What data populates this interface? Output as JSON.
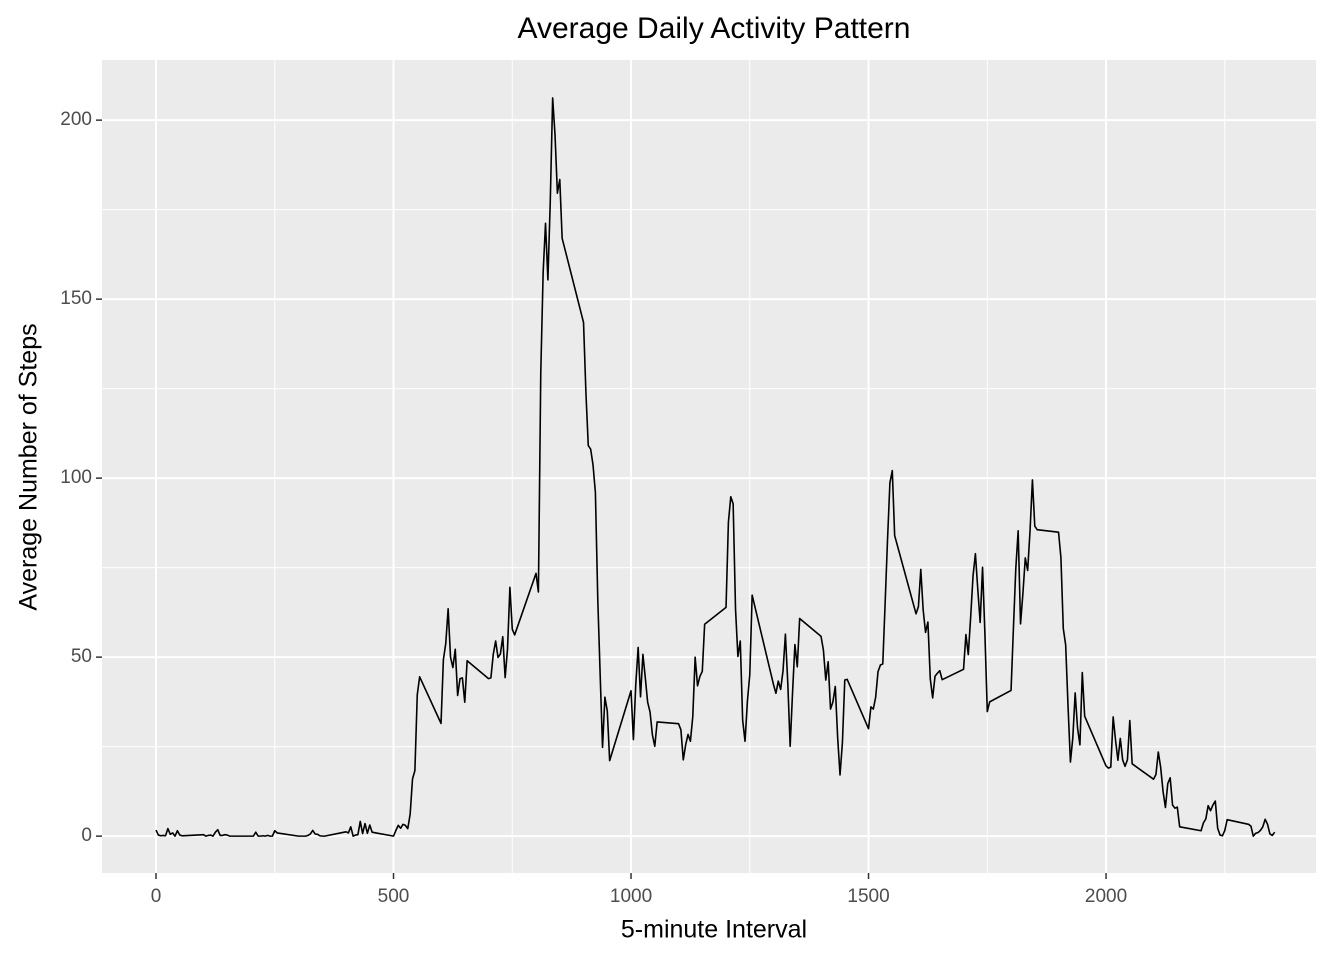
{
  "chart_data": {
    "type": "line",
    "title": "Average Daily Activity Pattern",
    "x_label": "5-minute Interval",
    "y_label": "Average Number of Steps",
    "xlim": [
      -113.7,
      2442
    ],
    "ylim": [
      -10.3,
      216.8
    ],
    "xticks": [
      0,
      500,
      1000,
      1500,
      2000
    ],
    "yticks": [
      0,
      50,
      100,
      150,
      200
    ],
    "x_minor_ticks": [
      250,
      750,
      1250,
      1750,
      2250
    ],
    "y_minor_ticks": [
      25,
      75,
      125,
      175
    ],
    "grid": true,
    "color": "#000000",
    "x": [
      0,
      5,
      10,
      15,
      20,
      25,
      30,
      35,
      40,
      45,
      50,
      55,
      100,
      105,
      110,
      115,
      120,
      125,
      130,
      135,
      140,
      145,
      150,
      155,
      200,
      205,
      210,
      215,
      220,
      225,
      230,
      235,
      240,
      245,
      250,
      255,
      300,
      305,
      310,
      315,
      320,
      325,
      330,
      335,
      340,
      345,
      350,
      355,
      400,
      405,
      410,
      415,
      420,
      425,
      430,
      435,
      440,
      445,
      450,
      455,
      500,
      505,
      510,
      515,
      520,
      525,
      530,
      535,
      540,
      545,
      550,
      555,
      600,
      605,
      610,
      615,
      620,
      625,
      630,
      635,
      640,
      645,
      650,
      655,
      700,
      705,
      710,
      715,
      720,
      725,
      730,
      735,
      740,
      745,
      750,
      755,
      800,
      805,
      810,
      815,
      820,
      825,
      830,
      835,
      840,
      845,
      850,
      855,
      900,
      905,
      910,
      915,
      920,
      925,
      930,
      935,
      940,
      945,
      950,
      955,
      1000,
      1005,
      1010,
      1015,
      1020,
      1025,
      1030,
      1035,
      1040,
      1045,
      1050,
      1055,
      1100,
      1105,
      1110,
      1115,
      1120,
      1125,
      1130,
      1135,
      1140,
      1145,
      1150,
      1155,
      1200,
      1205,
      1210,
      1215,
      1220,
      1225,
      1230,
      1235,
      1240,
      1245,
      1250,
      1255,
      1300,
      1305,
      1310,
      1315,
      1320,
      1325,
      1330,
      1335,
      1340,
      1345,
      1350,
      1355,
      1400,
      1405,
      1410,
      1415,
      1420,
      1425,
      1430,
      1435,
      1440,
      1445,
      1450,
      1455,
      1500,
      1505,
      1510,
      1515,
      1520,
      1525,
      1530,
      1535,
      1540,
      1545,
      1550,
      1555,
      1600,
      1605,
      1610,
      1615,
      1620,
      1625,
      1630,
      1635,
      1640,
      1645,
      1650,
      1655,
      1700,
      1705,
      1710,
      1715,
      1720,
      1725,
      1730,
      1735,
      1740,
      1745,
      1750,
      1755,
      1800,
      1805,
      1810,
      1815,
      1820,
      1825,
      1830,
      1835,
      1840,
      1845,
      1850,
      1855,
      1900,
      1905,
      1910,
      1915,
      1920,
      1925,
      1930,
      1935,
      1940,
      1945,
      1950,
      1955,
      2000,
      2005,
      2010,
      2015,
      2020,
      2025,
      2030,
      2035,
      2040,
      2045,
      2050,
      2055,
      2100,
      2105,
      2110,
      2115,
      2120,
      2125,
      2130,
      2135,
      2140,
      2145,
      2150,
      2155,
      2200,
      2205,
      2210,
      2215,
      2220,
      2225,
      2230,
      2235,
      2240,
      2245,
      2250,
      2255,
      2300,
      2305,
      2310,
      2315,
      2320,
      2325,
      2330,
      2335,
      2340,
      2345,
      2350,
      2355
    ],
    "values": [
      1.7,
      0.3,
      0.1,
      0.2,
      0.1,
      2.1,
      0.5,
      0.9,
      0,
      1.5,
      0.3,
      0.1,
      0.4,
      0,
      0.2,
      0.3,
      0,
      1.1,
      1.8,
      0.2,
      0.2,
      0.4,
      0.3,
      0,
      0,
      0,
      1.1,
      0,
      0,
      0.1,
      0,
      0.2,
      0,
      0,
      1.5,
      0.9,
      0,
      0,
      0,
      0,
      0.2,
      0.6,
      1.6,
      0.6,
      0.5,
      0.1,
      0,
      0,
      1.2,
      0.9,
      2.6,
      0,
      0.3,
      0.4,
      4.1,
      0.7,
      3.5,
      0.8,
      3.1,
      1.1,
      0,
      1.6,
      3,
      2.2,
      3.3,
      3,
      2.1,
      6.1,
      16,
      18.3,
      39.5,
      44.5,
      31.5,
      49.3,
      53.8,
      63.5,
      50,
      47.1,
      52.2,
      39.3,
      44,
      44.2,
      37.4,
      49,
      44,
      44.2,
      50.8,
      54.5,
      49.9,
      50.9,
      55.7,
      44.3,
      52.3,
      69.5,
      57.8,
      56.2,
      73.4,
      68.2,
      129.4,
      157.5,
      171.2,
      155.4,
      177.3,
      206.2,
      195.9,
      179.6,
      183.4,
      167,
      143.5,
      124,
      109.1,
      108.1,
      103.7,
      95.97,
      66.2,
      45.2,
      24.8,
      38.8,
      34.98,
      21.1,
      40.6,
      26.98,
      42.4,
      52.7,
      38.9,
      50.8,
      44.3,
      37.4,
      34.7,
      28.3,
      25.1,
      31.9,
      31.4,
      29.7,
      21.3,
      25.5,
      28.4,
      26.5,
      33.4,
      49.98,
      42,
      44.6,
      46,
      59.2,
      63.9,
      87.7,
      94.8,
      92.8,
      63.4,
      50.2,
      54.5,
      32.4,
      26.5,
      37.7,
      45.1,
      67.3,
      42.3,
      39.9,
      43.3,
      40.98,
      46.2,
      56.4,
      42.8,
      25.1,
      40,
      53.5,
      47.3,
      60.8,
      55.8,
      51.96,
      43.6,
      48.7,
      35.5,
      37.5,
      41.8,
      27.5,
      17.1,
      26.1,
      43.6,
      43.8,
      30,
      36.1,
      35.5,
      38.8,
      45.96,
      47.8,
      48.1,
      65.3,
      82.9,
      98.7,
      102.1,
      83.96,
      62.1,
      64.1,
      74.5,
      63.2,
      56.9,
      59.8,
      43.9,
      38.6,
      44.7,
      45.5,
      46.2,
      43.7,
      46.6,
      56.3,
      50.7,
      61.2,
      72.7,
      78.9,
      68.9,
      59.7,
      75.1,
      56.5,
      34.8,
      37.5,
      40.7,
      58,
      74.7,
      85.3,
      59.3,
      67.8,
      77.7,
      74.2,
      85.3,
      99.5,
      86.6,
      85.6,
      84.9,
      77.8,
      58,
      53.4,
      36.3,
      20.7,
      27.4,
      40,
      30.2,
      25.5,
      45.7,
      33.5,
      19.6,
      19,
      19.3,
      33.3,
      26.8,
      21.2,
      27.3,
      21.3,
      19.5,
      21.3,
      32.3,
      20.2,
      15.9,
      17.2,
      23.5,
      19.2,
      12.5,
      8,
      14.7,
      16.3,
      8.7,
      7.8,
      8.1,
      2.6,
      1.5,
      3.7,
      4.8,
      8.5,
      7.1,
      8.7,
      9.8,
      2.2,
      0.3,
      0.1,
      1.6,
      4.6,
      3.3,
      2.8,
      0,
      0.8,
      1,
      1.6,
      2.6,
      4.7,
      3.3,
      0.6,
      0.2,
      1.1
    ]
  }
}
